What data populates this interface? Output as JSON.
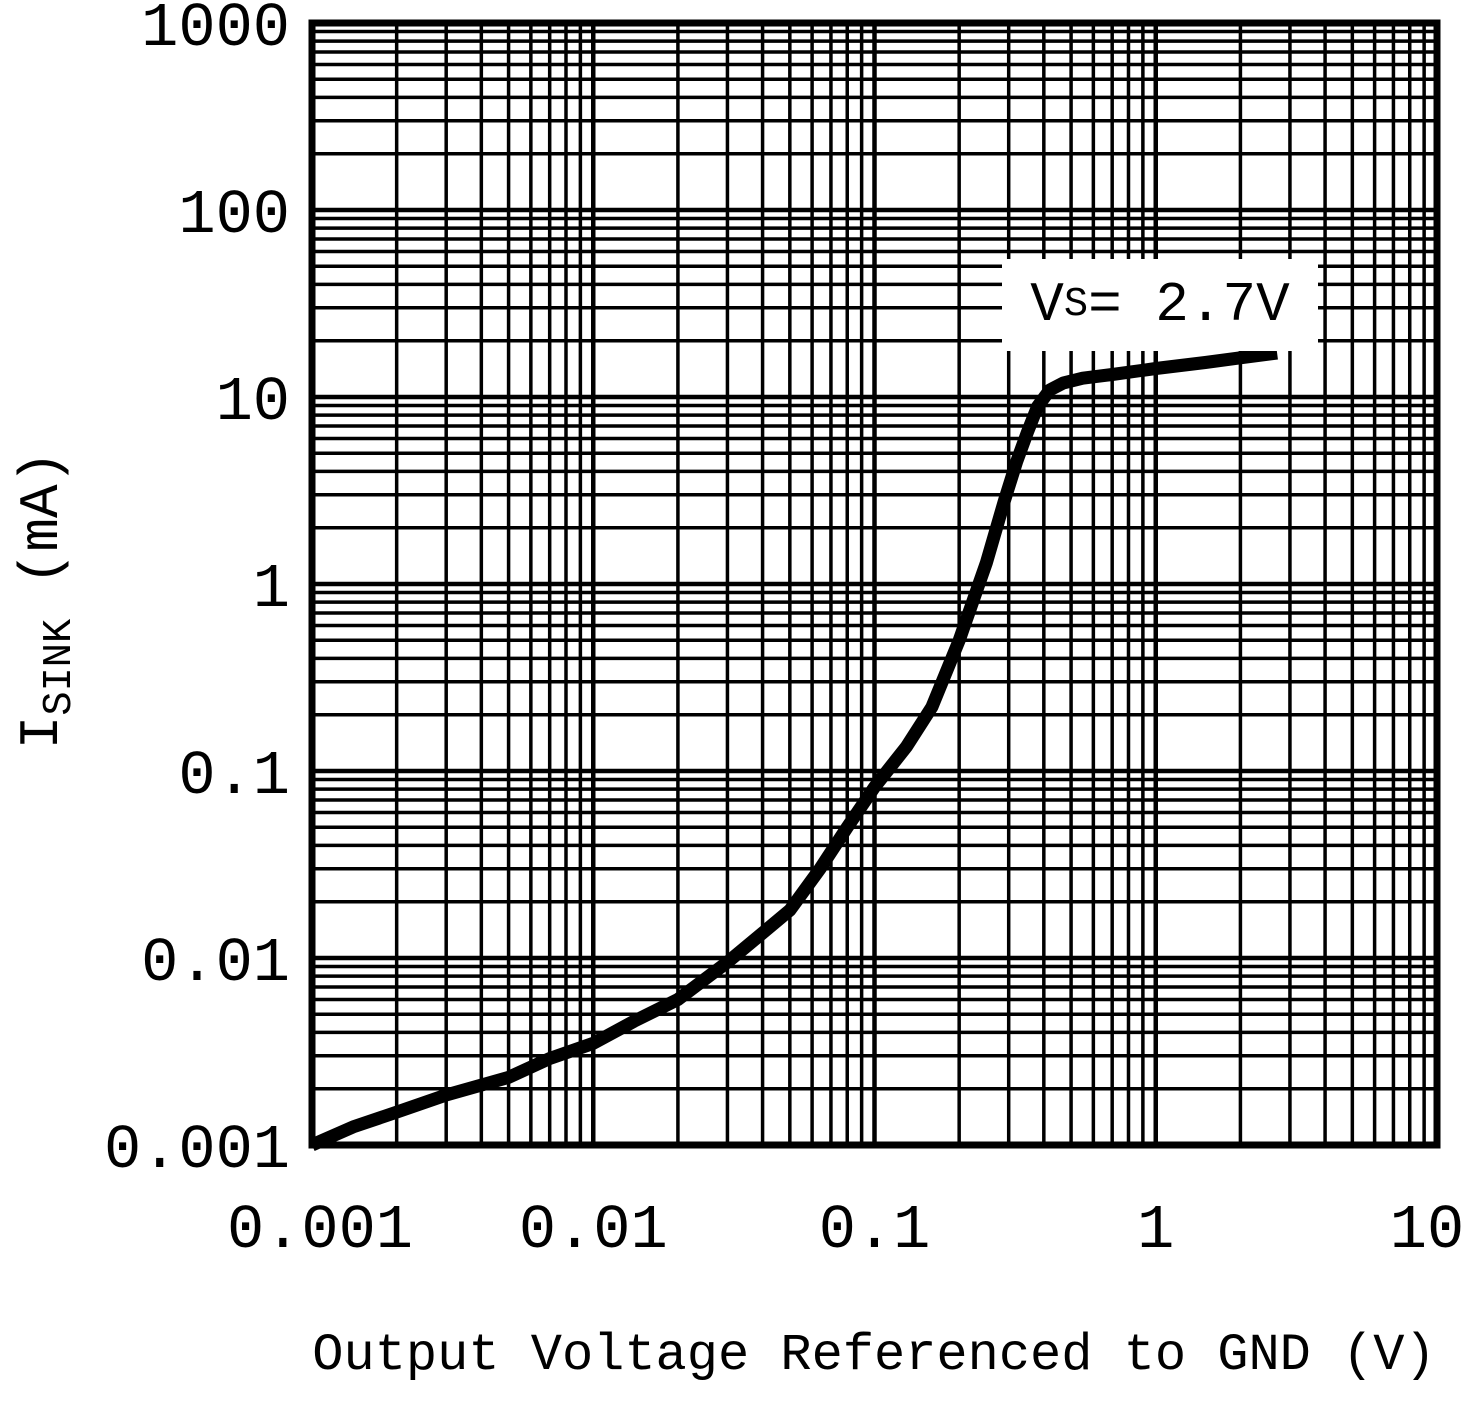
{
  "chart_data": {
    "type": "line",
    "title": "",
    "xlabel": "Output Voltage Referenced to GND (V)",
    "ylabel_parts": {
      "base": "I",
      "sub": "SINK",
      "rest": " (mA)"
    },
    "annotation": {
      "base": "V",
      "sub": "S",
      "rest": " = 2.7V"
    },
    "x_scale": "log",
    "y_scale": "log",
    "xlim": [
      0.001,
      10
    ],
    "ylim": [
      0.001,
      1000
    ],
    "x_ticks": [
      {
        "value": 0.001,
        "label": "0.001"
      },
      {
        "value": 0.01,
        "label": "0.01"
      },
      {
        "value": 0.1,
        "label": "0.1"
      },
      {
        "value": 1,
        "label": "1"
      },
      {
        "value": 10,
        "label": "10"
      }
    ],
    "y_ticks": [
      {
        "value": 0.001,
        "label": "0.001"
      },
      {
        "value": 0.01,
        "label": "0.01"
      },
      {
        "value": 0.1,
        "label": "0.1"
      },
      {
        "value": 1,
        "label": "1"
      },
      {
        "value": 10,
        "label": "10"
      },
      {
        "value": 100,
        "label": "100"
      },
      {
        "value": 1000,
        "label": "1000"
      }
    ],
    "grid": "log major and minor, both axes, on",
    "legend_position": "none",
    "series": [
      {
        "name": "VS = 2.7V",
        "points": [
          [
            0.001,
            0.001
          ],
          [
            0.0014,
            0.00125
          ],
          [
            0.002,
            0.0015
          ],
          [
            0.003,
            0.00185
          ],
          [
            0.005,
            0.0023
          ],
          [
            0.007,
            0.0029
          ],
          [
            0.01,
            0.0035
          ],
          [
            0.014,
            0.0046
          ],
          [
            0.02,
            0.006
          ],
          [
            0.03,
            0.0095
          ],
          [
            0.04,
            0.0136
          ],
          [
            0.05,
            0.018
          ],
          [
            0.064,
            0.03
          ],
          [
            0.08,
            0.05
          ],
          [
            0.1,
            0.082
          ],
          [
            0.13,
            0.135
          ],
          [
            0.16,
            0.22
          ],
          [
            0.2,
            0.5
          ],
          [
            0.25,
            1.3
          ],
          [
            0.29,
            2.8
          ],
          [
            0.32,
            4.5
          ],
          [
            0.35,
            6.5
          ],
          [
            0.38,
            8.9
          ],
          [
            0.42,
            10.9
          ],
          [
            0.47,
            11.9
          ],
          [
            0.55,
            12.6
          ],
          [
            0.7,
            13.2
          ],
          [
            1.0,
            14.2
          ],
          [
            1.5,
            15.3
          ],
          [
            2.0,
            16.2
          ],
          [
            2.7,
            17.2
          ]
        ]
      }
    ],
    "colors": {
      "background": "#ffffff",
      "grid": "#000000",
      "frame": "#000000",
      "line": "#000000",
      "text": "#000000"
    }
  }
}
